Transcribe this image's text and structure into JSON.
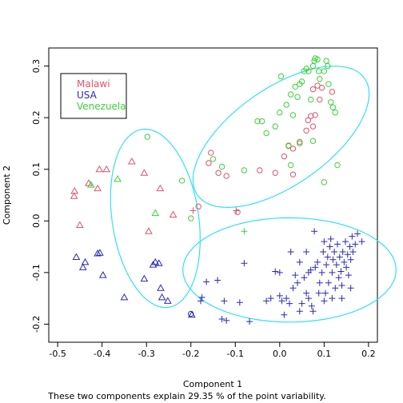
{
  "chart_data": {
    "type": "scatter",
    "xlabel": "Component 1",
    "ylabel": "Component 2",
    "subtitle": "These two components explain 29.35 % of the point variability.",
    "xlim": [
      -0.52,
      0.22
    ],
    "ylim": [
      -0.235,
      0.335
    ],
    "x_ticks": [
      -0.5,
      -0.4,
      -0.3,
      -0.2,
      -0.1,
      0.0,
      0.1,
      0.2
    ],
    "x_tick_labels": [
      "-0.5",
      "-0.4",
      "-0.3",
      "-0.2",
      "-0.1",
      "0.0",
      "0.1",
      "0.2"
    ],
    "y_ticks": [
      -0.2,
      -0.1,
      0.0,
      0.1,
      0.2,
      0.3
    ],
    "y_tick_labels": [
      "-0.2",
      "-0.1",
      "0.0",
      "0.1",
      "0.2",
      "0.3"
    ],
    "grid": false,
    "legend_position": "top-left",
    "legend": [
      {
        "label": "Malawi",
        "color": "#df536b"
      },
      {
        "label": "USA",
        "color": "#2a2ab8"
      },
      {
        "label": "Venezuela",
        "color": "#3ad13a"
      }
    ],
    "shape_meaning": [
      "triangle",
      "circle",
      "plus"
    ],
    "ellipse_color": "#33e0ef",
    "ellipses": [
      {
        "center": [
          -0.28,
          0.005
        ],
        "semi_axes": [
          0.097,
          0.175
        ],
        "angle_deg": 11
      },
      {
        "center": [
          0.003,
          0.163
        ],
        "semi_axes": [
          0.22,
          0.098
        ],
        "angle_deg": 29
      },
      {
        "center": [
          0.022,
          -0.095
        ],
        "semi_axes": [
          0.24,
          0.101
        ],
        "angle_deg": 0
      }
    ],
    "series": [
      {
        "name": "Malawi",
        "color": "#df536b",
        "marker": "triangle",
        "points": [
          [
            -0.462,
            0.058
          ],
          [
            -0.463,
            0.048
          ],
          [
            -0.43,
            0.073
          ],
          [
            -0.406,
            0.1
          ],
          [
            -0.39,
            0.1
          ],
          [
            -0.333,
            0.115
          ],
          [
            -0.305,
            0.093
          ],
          [
            -0.41,
            0.063
          ],
          [
            -0.45,
            -0.008
          ],
          [
            -0.269,
            0.063
          ],
          [
            -0.24,
            0.012
          ],
          [
            -0.295,
            -0.02
          ]
        ]
      },
      {
        "name": "Malawi",
        "color": "#df536b",
        "marker": "circle",
        "points": [
          [
            -0.155,
            0.132
          ],
          [
            -0.16,
            0.112
          ],
          [
            -0.138,
            0.093
          ],
          [
            -0.12,
            0.087
          ],
          [
            -0.183,
            0.028
          ],
          [
            -0.095,
            0.017
          ],
          [
            -0.045,
            0.098
          ],
          [
            -0.01,
            0.093
          ],
          [
            0.01,
            0.125
          ],
          [
            0.02,
            0.146
          ],
          [
            0.03,
            0.14
          ],
          [
            0.045,
            0.153
          ],
          [
            0.06,
            0.175
          ],
          [
            0.064,
            0.195
          ],
          [
            0.07,
            0.203
          ],
          [
            0.075,
            0.183
          ],
          [
            0.08,
            0.205
          ],
          [
            0.09,
            0.235
          ],
          [
            0.095,
            0.258
          ],
          [
            0.085,
            0.262
          ],
          [
            0.075,
            0.255
          ],
          [
            0.118,
            0.25
          ],
          [
            0.03,
            0.09
          ]
        ]
      },
      {
        "name": "Malawi",
        "color": "#df536b",
        "marker": "plus",
        "points": [
          [
            -0.195,
            0.02
          ],
          [
            -0.098,
            0.02
          ]
        ]
      },
      {
        "name": "USA",
        "color": "#2a2ab8",
        "marker": "triangle",
        "points": [
          [
            -0.458,
            -0.07
          ],
          [
            -0.438,
            -0.08
          ],
          [
            -0.443,
            -0.09
          ],
          [
            -0.405,
            -0.062
          ],
          [
            -0.41,
            -0.063
          ],
          [
            -0.398,
            -0.105
          ],
          [
            -0.35,
            -0.148
          ],
          [
            -0.305,
            -0.112
          ],
          [
            -0.285,
            -0.085
          ],
          [
            -0.28,
            -0.08
          ],
          [
            -0.272,
            -0.082
          ],
          [
            -0.268,
            -0.13
          ],
          [
            -0.265,
            -0.148
          ],
          [
            -0.252,
            -0.155
          ],
          [
            -0.198,
            -0.182
          ]
        ]
      },
      {
        "name": "USA",
        "color": "#2a2ab8",
        "marker": "circle",
        "points": [
          [
            -0.2,
            -0.18
          ]
        ]
      },
      {
        "name": "USA",
        "color": "#2a2ab8",
        "marker": "plus",
        "points": [
          [
            -0.178,
            -0.155
          ],
          [
            -0.175,
            -0.148
          ],
          [
            -0.165,
            -0.118
          ],
          [
            -0.14,
            -0.115
          ],
          [
            -0.125,
            -0.155
          ],
          [
            -0.13,
            -0.19
          ],
          [
            -0.12,
            -0.193
          ],
          [
            -0.09,
            -0.158
          ],
          [
            -0.08,
            -0.082
          ],
          [
            -0.068,
            -0.195
          ],
          [
            -0.03,
            -0.155
          ],
          [
            -0.02,
            -0.15
          ],
          [
            -0.01,
            -0.098
          ],
          [
            0.0,
            -0.1
          ],
          [
            0.0,
            -0.145
          ],
          [
            0.005,
            -0.155
          ],
          [
            0.01,
            -0.182
          ],
          [
            0.015,
            -0.15
          ],
          [
            0.022,
            -0.16
          ],
          [
            0.03,
            -0.13
          ],
          [
            0.035,
            -0.105
          ],
          [
            0.04,
            -0.12
          ],
          [
            0.045,
            -0.175
          ],
          [
            0.05,
            -0.16
          ],
          [
            0.055,
            -0.11
          ],
          [
            0.06,
            -0.14
          ],
          [
            0.065,
            -0.15
          ],
          [
            0.07,
            -0.095
          ],
          [
            0.072,
            -0.165
          ],
          [
            0.075,
            -0.175
          ],
          [
            0.078,
            -0.02
          ],
          [
            0.08,
            -0.09
          ],
          [
            0.085,
            -0.08
          ],
          [
            0.088,
            -0.14
          ],
          [
            0.09,
            -0.12
          ],
          [
            0.095,
            -0.1
          ],
          [
            0.098,
            -0.06
          ],
          [
            0.1,
            -0.155
          ],
          [
            0.103,
            -0.14
          ],
          [
            0.105,
            -0.085
          ],
          [
            0.108,
            -0.07
          ],
          [
            0.11,
            -0.12
          ],
          [
            0.113,
            -0.05
          ],
          [
            0.115,
            -0.035
          ],
          [
            0.118,
            -0.1
          ],
          [
            0.12,
            -0.075
          ],
          [
            0.123,
            -0.06
          ],
          [
            0.125,
            -0.13
          ],
          [
            0.128,
            -0.085
          ],
          [
            0.13,
            -0.045
          ],
          [
            0.133,
            -0.11
          ],
          [
            0.135,
            -0.07
          ],
          [
            0.138,
            -0.098
          ],
          [
            0.14,
            -0.125
          ],
          [
            0.142,
            -0.06
          ],
          [
            0.145,
            -0.08
          ],
          [
            0.148,
            -0.04
          ],
          [
            0.15,
            -0.09
          ],
          [
            0.153,
            -0.065
          ],
          [
            0.155,
            -0.105
          ],
          [
            0.158,
            -0.05
          ],
          [
            0.16,
            -0.075
          ],
          [
            0.163,
            -0.03
          ],
          [
            0.165,
            -0.06
          ],
          [
            0.17,
            -0.045
          ],
          [
            0.175,
            -0.025
          ],
          [
            0.185,
            -0.04
          ],
          [
            0.14,
            -0.15
          ],
          [
            0.16,
            -0.13
          ],
          [
            0.025,
            -0.06
          ],
          [
            0.045,
            -0.08
          ],
          [
            0.06,
            -0.06
          ],
          [
            0.065,
            -0.1
          ],
          [
            0.118,
            -0.15
          ],
          [
            0.1,
            -0.04
          ]
        ]
      },
      {
        "name": "Venezuela",
        "color": "#3ad13a",
        "marker": "triangle",
        "points": [
          [
            -0.425,
            0.07
          ],
          [
            -0.365,
            0.081
          ],
          [
            -0.28,
            0.015
          ]
        ]
      },
      {
        "name": "Venezuela",
        "color": "#3ad13a",
        "marker": "circle",
        "points": [
          [
            -0.298,
            0.163
          ],
          [
            -0.22,
            0.078
          ],
          [
            -0.2,
            0.005
          ],
          [
            -0.15,
            0.12
          ],
          [
            -0.13,
            0.105
          ],
          [
            -0.08,
            0.098
          ],
          [
            -0.05,
            0.193
          ],
          [
            -0.04,
            0.193
          ],
          [
            -0.03,
            0.17
          ],
          [
            -0.01,
            0.183
          ],
          [
            0.0,
            0.21
          ],
          [
            0.003,
            0.28
          ],
          [
            0.015,
            0.225
          ],
          [
            0.025,
            0.245
          ],
          [
            0.03,
            0.205
          ],
          [
            0.035,
            0.26
          ],
          [
            0.04,
            0.24
          ],
          [
            0.045,
            0.265
          ],
          [
            0.05,
            0.27
          ],
          [
            0.055,
            0.29
          ],
          [
            0.06,
            0.295
          ],
          [
            0.065,
            0.29
          ],
          [
            0.07,
            0.235
          ],
          [
            0.075,
            0.3
          ],
          [
            0.078,
            0.31
          ],
          [
            0.08,
            0.315
          ],
          [
            0.085,
            0.313
          ],
          [
            0.088,
            0.29
          ],
          [
            0.09,
            0.275
          ],
          [
            0.1,
            0.29
          ],
          [
            0.105,
            0.31
          ],
          [
            0.108,
            0.3
          ],
          [
            0.11,
            0.265
          ],
          [
            0.115,
            0.23
          ],
          [
            0.12,
            0.22
          ],
          [
            0.125,
            0.21
          ],
          [
            0.13,
            0.108
          ],
          [
            0.1,
            0.075
          ],
          [
            0.02,
            0.145
          ],
          [
            0.025,
            0.108
          ],
          [
            0.045,
            0.15
          ],
          [
            0.075,
            0.155
          ]
        ]
      },
      {
        "name": "Venezuela",
        "color": "#3ad13a",
        "marker": "plus",
        "points": [
          [
            -0.08,
            -0.02
          ]
        ]
      }
    ]
  }
}
